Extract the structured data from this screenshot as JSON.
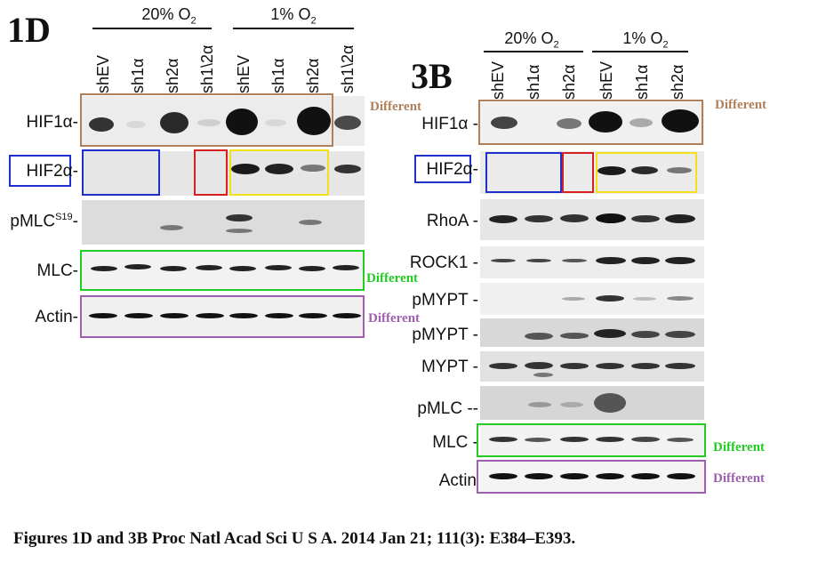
{
  "panel_1d": {
    "id": "1D",
    "header_20": "20% O",
    "header_1": "1% O",
    "o2_sub": "2",
    "lanes": [
      "shEV",
      "sh1α",
      "sh2α",
      "sh1\\2α",
      "shEV",
      "sh1α",
      "sh2α",
      "sh1\\2α"
    ],
    "rows": {
      "hif1a": "HIF1α",
      "hif2a": "HIF2α",
      "pmlc": "pMLC",
      "pmlc_sup": "S19",
      "mlc": "MLC",
      "actin": "Actin"
    }
  },
  "panel_3b": {
    "id": "3B",
    "header_20": "20% O",
    "header_1": "1% O",
    "o2_sub": "2",
    "lanes": [
      "shEV",
      "sh1α",
      "sh2α",
      "shEV",
      "sh1α",
      "sh2α"
    ],
    "rows": {
      "hif1a": "HIF1α",
      "hif2a": "HIF2α",
      "rhoa": "RhoA",
      "rock1": "ROCK1",
      "pmypt1": "pMYPT",
      "pmypt2": "pMYPT",
      "mypt": "MYPT",
      "pmlc": "pMLC --",
      "mlc": "MLC",
      "actin": "Actin"
    }
  },
  "annotations": {
    "different": "Different",
    "colors": {
      "brown": "#b0805a",
      "blue": "#1f2fcc",
      "red": "#d42020",
      "yellow": "#f2e01a",
      "green": "#22cc22",
      "purple": "#a060b0"
    }
  },
  "caption": "Figures 1D and 3B Proc Natl Acad Sci U S A. 2014 Jan 21; 111(3): E384–E393."
}
